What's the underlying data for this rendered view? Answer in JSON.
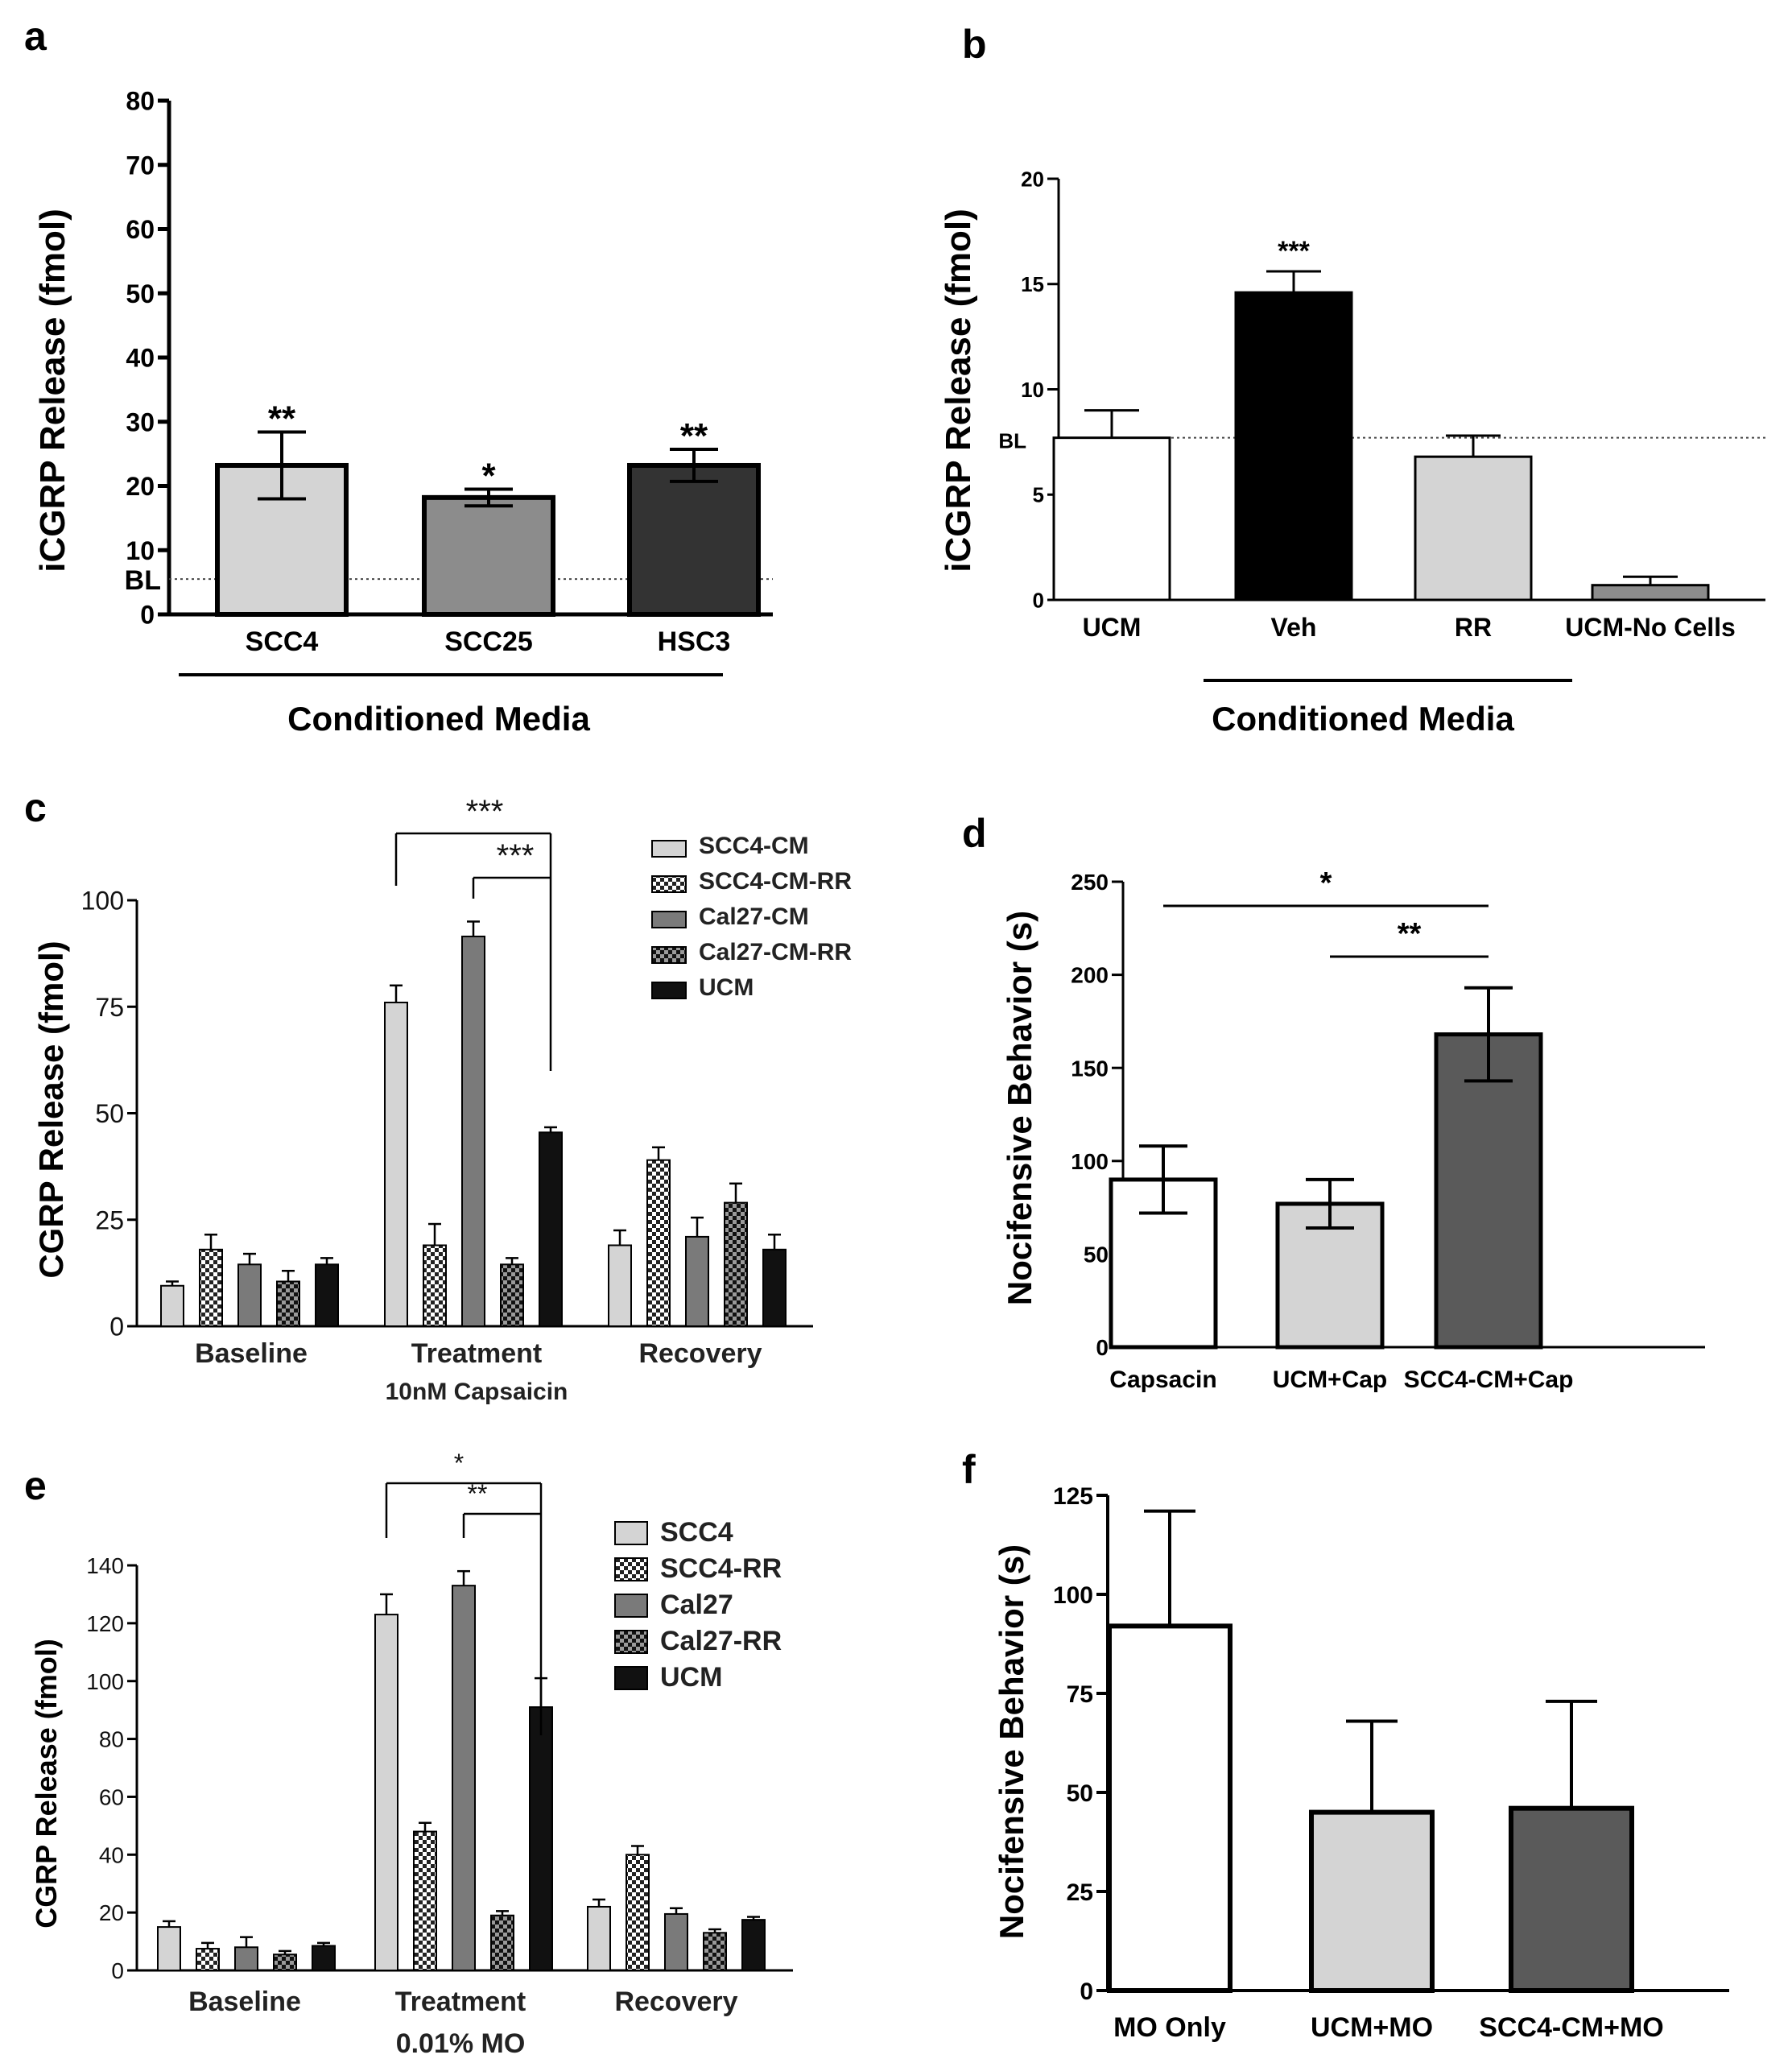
{
  "chart_data": [
    {
      "panel": "a",
      "type": "bar",
      "ylabel": "iCGRP Release (fmol)",
      "xlabel": "Conditioned Media",
      "ylim": [
        0,
        80
      ],
      "yticks": [
        "0",
        "10",
        "20",
        "30",
        "40",
        "50",
        "60",
        "70",
        "80"
      ],
      "baseline": {
        "label": "BL",
        "value": 5.5
      },
      "categories": [
        "SCC4",
        "SCC25",
        "HSC3"
      ],
      "values": [
        23.2,
        18.2,
        23.2
      ],
      "errors": [
        5.2,
        1.3,
        2.5
      ],
      "significance": [
        "**",
        "*",
        "**"
      ],
      "colors": [
        "#d4d4d4",
        "#8c8c8c",
        "#333333"
      ]
    },
    {
      "panel": "b",
      "type": "bar",
      "ylabel": "iCGRP Release (fmol)",
      "xlabel": "Conditioned Media",
      "ylim": [
        0,
        20
      ],
      "yticks": [
        "0",
        "5",
        "10",
        "15",
        "20"
      ],
      "baseline": {
        "label": "BL",
        "value": 7.7
      },
      "categories": [
        "UCM",
        "Veh",
        "RR",
        "UCM-No Cells"
      ],
      "values": [
        7.7,
        14.6,
        6.8,
        0.7
      ],
      "errors": [
        1.3,
        1.0,
        1.0,
        0.4
      ],
      "significance": [
        "",
        "***",
        "",
        ""
      ],
      "colors": [
        "#ffffff",
        "#000000",
        "#d4d4d4",
        "#8c8c8c"
      ]
    },
    {
      "panel": "c",
      "type": "bar",
      "ylabel": "CGRP Release (fmol)",
      "ylim": [
        0,
        100
      ],
      "yticks": [
        "0",
        "25",
        "50",
        "75",
        "100"
      ],
      "categories": [
        "Baseline",
        "Treatment",
        "Recovery"
      ],
      "category_sublabels": [
        "",
        "10nM Capsaicin",
        ""
      ],
      "series": [
        {
          "name": "SCC4-CM",
          "values": [
            9.5,
            76,
            19
          ],
          "errors": [
            1,
            4,
            3.5
          ]
        },
        {
          "name": "SCC4-CM-RR",
          "values": [
            18,
            19,
            39
          ],
          "errors": [
            3.5,
            5,
            3
          ]
        },
        {
          "name": "Cal27-CM",
          "values": [
            14.5,
            91.5,
            21
          ],
          "errors": [
            2.5,
            3.5,
            4.5
          ]
        },
        {
          "name": "Cal27-CM-RR",
          "values": [
            10.5,
            14.5,
            29
          ],
          "errors": [
            2.5,
            1.5,
            4.5
          ]
        },
        {
          "name": "UCM",
          "values": [
            14.5,
            45.5,
            18
          ],
          "errors": [
            1.5,
            1.2,
            3.5
          ]
        }
      ],
      "significance_brackets": [
        {
          "label": "***",
          "from_series": 0,
          "to_series": 4,
          "category": 1
        },
        {
          "label": "***",
          "from_series": 2,
          "to_series": 4,
          "category": 1
        }
      ]
    },
    {
      "panel": "d",
      "type": "bar",
      "ylabel": "Nocifensive Behavior (s)",
      "ylim": [
        0,
        250
      ],
      "yticks": [
        "0",
        "50",
        "100",
        "150",
        "200",
        "250"
      ],
      "categories": [
        "Capsacin",
        "UCM+Cap",
        "SCC4-CM+Cap"
      ],
      "values": [
        90,
        77,
        168
      ],
      "errors": [
        18,
        13,
        25
      ],
      "colors": [
        "#ffffff",
        "#d4d4d4",
        "#5a5a5a"
      ],
      "significance_brackets": [
        {
          "label": "*",
          "from": 0,
          "to": 2
        },
        {
          "label": "**",
          "from": 1,
          "to": 2
        }
      ]
    },
    {
      "panel": "e",
      "type": "bar",
      "ylabel": "CGRP Release (fmol)",
      "ylim": [
        0,
        140
      ],
      "yticks": [
        "0",
        "20",
        "40",
        "60",
        "80",
        "100",
        "120",
        "140"
      ],
      "categories": [
        "Baseline",
        "Treatment",
        "Recovery"
      ],
      "category_sublabels": [
        "",
        "0.01% MO",
        ""
      ],
      "series": [
        {
          "name": "SCC4",
          "values": [
            15,
            123,
            22
          ],
          "errors": [
            2,
            7,
            2.5
          ]
        },
        {
          "name": "SCC4-RR",
          "values": [
            7.5,
            48,
            40
          ],
          "errors": [
            2,
            3,
            3
          ]
        },
        {
          "name": "Cal27",
          "values": [
            8,
            133,
            19.5
          ],
          "errors": [
            3.5,
            5,
            2
          ]
        },
        {
          "name": "Cal27-RR",
          "values": [
            5.5,
            19,
            13
          ],
          "errors": [
            1.2,
            1.5,
            1.2
          ]
        },
        {
          "name": "UCM",
          "values": [
            8.5,
            91,
            17.5
          ],
          "errors": [
            1,
            10,
            1
          ]
        }
      ],
      "significance_brackets": [
        {
          "label": "*",
          "from_series": 0,
          "to_series": 4,
          "category": 1
        },
        {
          "label": "**",
          "from_series": 2,
          "to_series": 4,
          "category": 1
        }
      ]
    },
    {
      "panel": "f",
      "type": "bar",
      "ylabel": "Nocifensive Behavior (s)",
      "ylim": [
        0,
        125
      ],
      "yticks": [
        "0",
        "25",
        "50",
        "75",
        "100",
        "125"
      ],
      "categories": [
        "MO Only",
        "UCM+MO",
        "SCC4-CM+MO"
      ],
      "values": [
        92,
        45,
        46
      ],
      "errors": [
        29,
        23,
        27
      ],
      "colors": [
        "#ffffff",
        "#d4d4d4",
        "#5a5a5a"
      ]
    }
  ]
}
